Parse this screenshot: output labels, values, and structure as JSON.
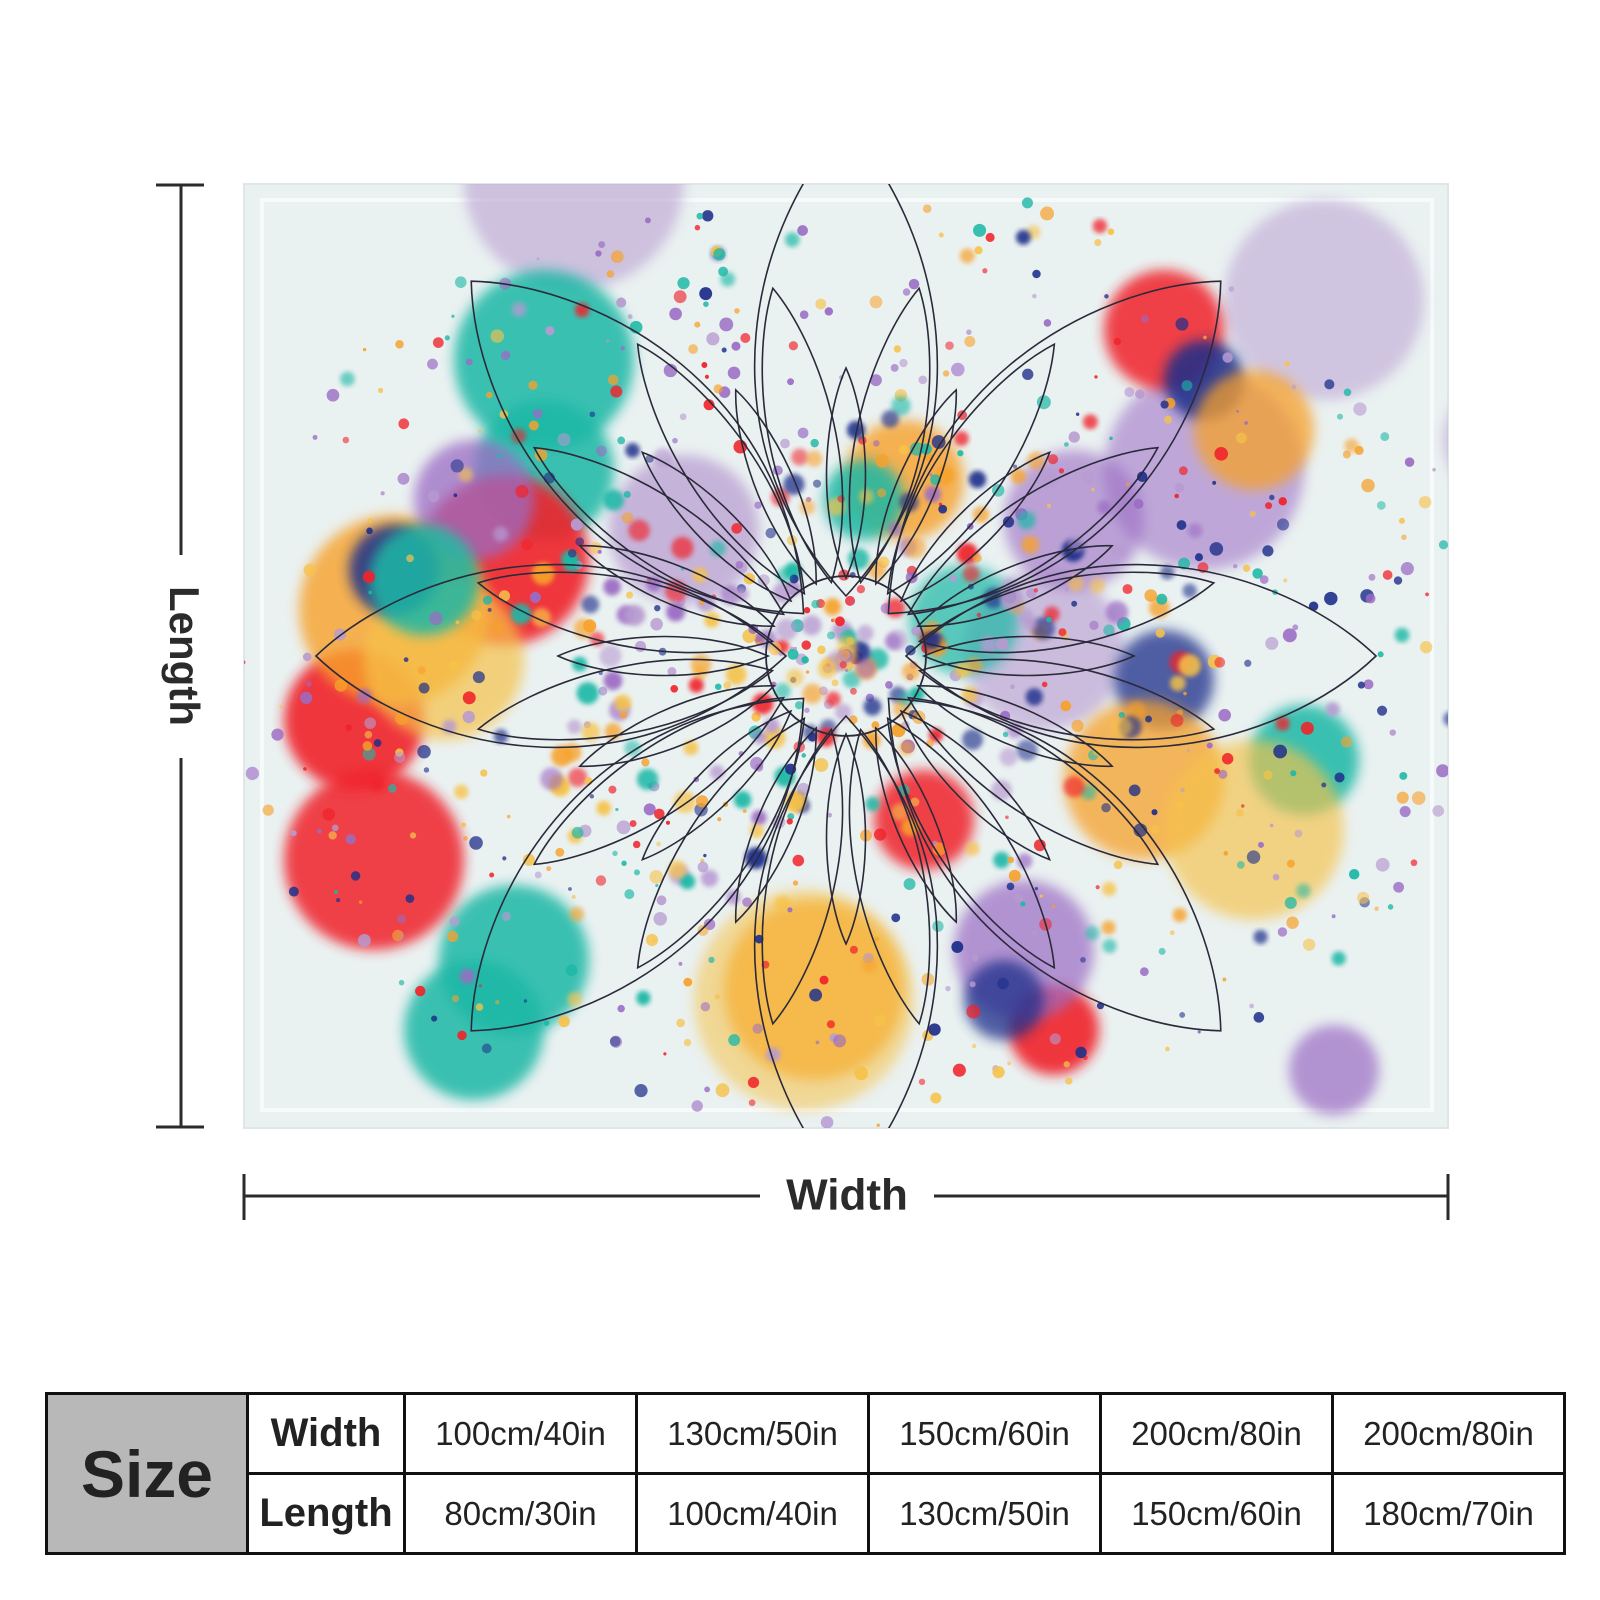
{
  "diagram": {
    "length_label": "Length",
    "width_label": "Width"
  },
  "artwork": {
    "description_icon": "paint-splatter-mandala-artwork",
    "colors": {
      "background": "#eaf1f1",
      "teal": "#1fb8a6",
      "red": "#f0232b",
      "orange": "#f7a12b",
      "yellow": "#f6c24a",
      "purple": "#9b6cc4",
      "lilac": "#b79ad0",
      "navy": "#1f2f8a",
      "outline": "#2a2a3a"
    }
  },
  "size_table": {
    "size_label": "Size",
    "width_label": "Width",
    "length_label": "Length",
    "widths": [
      "100cm/40in",
      "130cm/50in",
      "150cm/60in",
      "200cm/80in",
      "200cm/80in"
    ],
    "lengths": [
      "80cm/30in",
      "100cm/40in",
      "130cm/50in",
      "150cm/60in",
      "180cm/70in"
    ]
  }
}
